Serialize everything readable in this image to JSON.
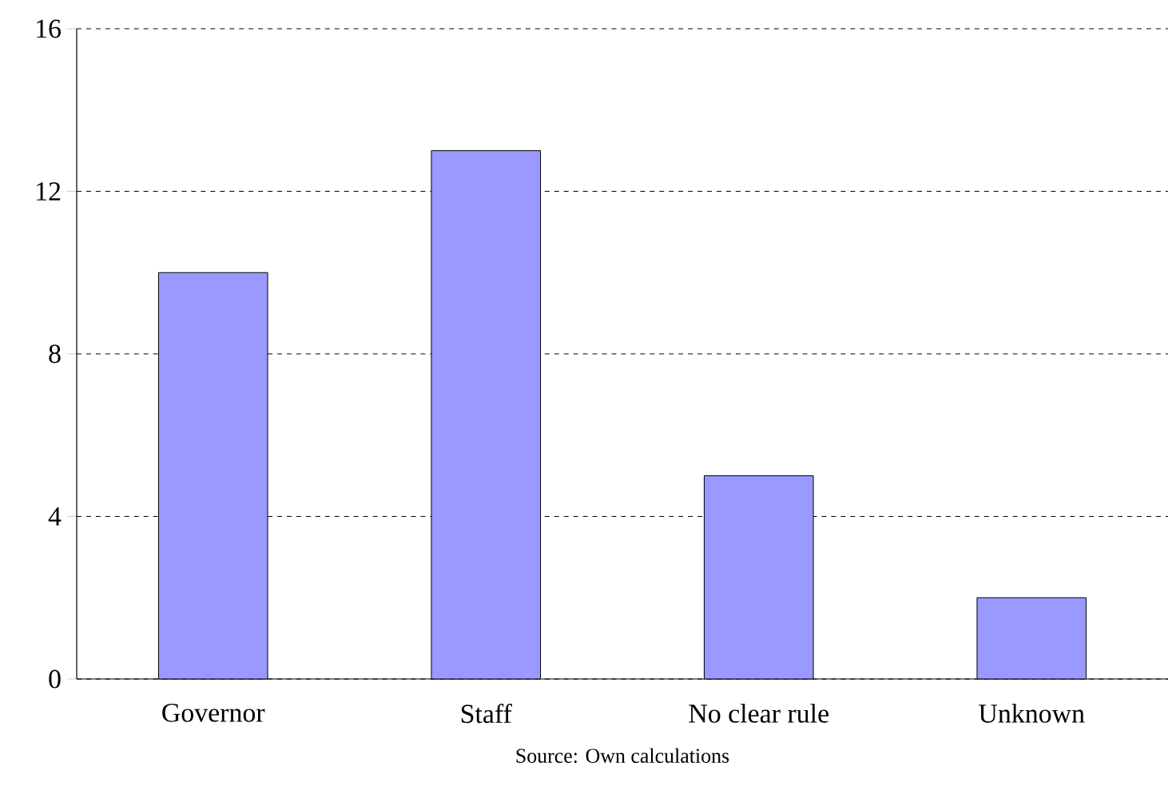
{
  "chart_data": {
    "type": "bar",
    "categories": [
      "Governor",
      "Staff",
      "No clear rule",
      "Unknown"
    ],
    "values": [
      10,
      13,
      5,
      2
    ],
    "color": "#9999ff",
    "ylim": [
      0,
      16
    ],
    "yticks": [
      0,
      4,
      8,
      12,
      16
    ],
    "grid": "y",
    "annotations": [
      "Source: Own calculations"
    ]
  }
}
